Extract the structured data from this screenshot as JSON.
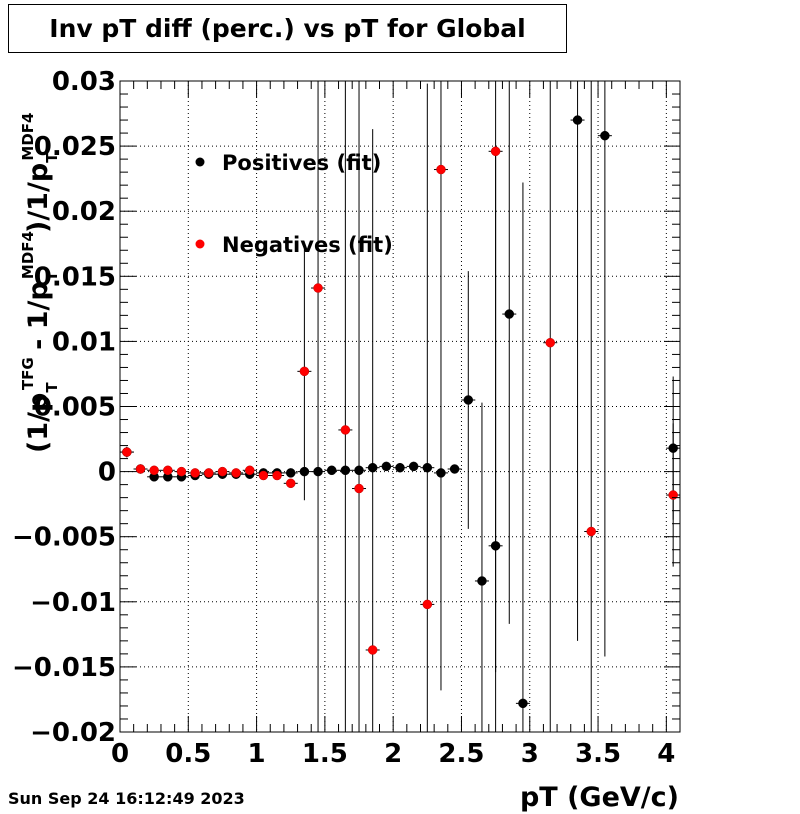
{
  "title": "Inv pT diff (perc.) vs pT for Global",
  "timestamp": "Sun Sep 24 16:12:49 2023",
  "chart_data": {
    "type": "scatter",
    "title": "Inv pT diff (perc.) vs pT for Global",
    "xlabel": "pT (GeV/c)",
    "ylabel_parts": [
      "(1/p",
      "T",
      "TFG",
      " - 1/p",
      "T",
      "MDF4",
      ")/1/p",
      "T",
      "MDF4"
    ],
    "xlim": [
      0,
      4.1
    ],
    "ylim": [
      -0.02,
      0.03
    ],
    "x_ticks": [
      0,
      0.5,
      1,
      1.5,
      2,
      2.5,
      3,
      3.5,
      4
    ],
    "x_tick_labels": [
      "0",
      "0.5",
      "1",
      "1.5",
      "2",
      "2.5",
      "3",
      "3.5",
      "4"
    ],
    "y_ticks": [
      -0.02,
      -0.015,
      -0.01,
      -0.005,
      0,
      0.005,
      0.01,
      0.015,
      0.02,
      0.025,
      0.03
    ],
    "y_tick_labels": [
      "−0.02",
      "−0.015",
      "−0.01",
      "−0.005",
      "0",
      "0.005",
      "0.01",
      "0.015",
      "0.02",
      "0.025",
      "0.03"
    ],
    "grid": true,
    "legend_position": "top-left",
    "series": [
      {
        "name": "Positives (fit)",
        "color": "#000000",
        "points": [
          {
            "x": 0.05,
            "y": 0.0015,
            "err": 0.0004
          },
          {
            "x": 0.15,
            "y": 0.0002,
            "err": 0.0002
          },
          {
            "x": 0.25,
            "y": -0.0004,
            "err": 0.0002
          },
          {
            "x": 0.35,
            "y": -0.0004,
            "err": 0.0002
          },
          {
            "x": 0.45,
            "y": -0.0004,
            "err": 0.0002
          },
          {
            "x": 0.55,
            "y": -0.0003,
            "err": 0.0002
          },
          {
            "x": 0.65,
            "y": -0.0002,
            "err": 0.0002
          },
          {
            "x": 0.75,
            "y": -0.0002,
            "err": 0.0002
          },
          {
            "x": 0.85,
            "y": -0.0002,
            "err": 0.0002
          },
          {
            "x": 0.95,
            "y": -0.0002,
            "err": 0.0002
          },
          {
            "x": 1.05,
            "y": -0.0001,
            "err": 0.0003
          },
          {
            "x": 1.15,
            "y": -0.0001,
            "err": 0.0003
          },
          {
            "x": 1.25,
            "y": -0.0001,
            "err": 0.0003
          },
          {
            "x": 1.35,
            "y": 0.0,
            "err": 0.0003
          },
          {
            "x": 1.45,
            "y": 0.0,
            "err": 0.0003
          },
          {
            "x": 1.55,
            "y": 0.0001,
            "err": 0.0003
          },
          {
            "x": 1.65,
            "y": 0.0001,
            "err": 0.0003
          },
          {
            "x": 1.75,
            "y": 0.0001,
            "err": 0.0003
          },
          {
            "x": 1.85,
            "y": 0.0003,
            "err": 0.0003
          },
          {
            "x": 1.95,
            "y": 0.0004,
            "err": 0.0003
          },
          {
            "x": 2.05,
            "y": 0.0003,
            "err": 0.0003
          },
          {
            "x": 2.15,
            "y": 0.0004,
            "err": 0.0003
          },
          {
            "x": 2.25,
            "y": 0.0003,
            "err": 0.0003
          },
          {
            "x": 2.35,
            "y": -0.0001,
            "err": 0.0003
          },
          {
            "x": 2.45,
            "y": 0.0002,
            "err": 0.0003
          },
          {
            "x": 2.55,
            "y": 0.0055,
            "err": 0.0099
          },
          {
            "x": 2.65,
            "y": -0.0084,
            "err": 0.0137
          },
          {
            "x": 2.75,
            "y": -0.0057,
            "err": 0.03
          },
          {
            "x": 2.85,
            "y": 0.0121,
            "err": 0.0238
          },
          {
            "x": 2.95,
            "y": -0.0178,
            "err": 0.04
          },
          {
            "x": 3.35,
            "y": 0.027,
            "err": 0.04
          },
          {
            "x": 3.55,
            "y": 0.0258,
            "err": 0.04
          },
          {
            "x": 4.05,
            "y": 0.0018,
            "err": 0.0055
          }
        ]
      },
      {
        "name": "Negatives (fit)",
        "color": "#ff0000",
        "points": [
          {
            "x": 0.05,
            "y": 0.0015,
            "err": 0.0004
          },
          {
            "x": 0.15,
            "y": 0.0002,
            "err": 0.0002
          },
          {
            "x": 0.25,
            "y": 0.0001,
            "err": 0.0002
          },
          {
            "x": 0.35,
            "y": 0.0001,
            "err": 0.0002
          },
          {
            "x": 0.45,
            "y": 0.0,
            "err": 0.0002
          },
          {
            "x": 0.55,
            "y": -0.0001,
            "err": 0.0002
          },
          {
            "x": 0.65,
            "y": -0.0001,
            "err": 0.0002
          },
          {
            "x": 0.75,
            "y": 0.0,
            "err": 0.0002
          },
          {
            "x": 0.85,
            "y": -0.0001,
            "err": 0.0002
          },
          {
            "x": 0.95,
            "y": 0.0001,
            "err": 0.0002
          },
          {
            "x": 1.05,
            "y": -0.0003,
            "err": 0.0003
          },
          {
            "x": 1.15,
            "y": -0.0003,
            "err": 0.0003
          },
          {
            "x": 1.25,
            "y": -0.0009,
            "err": 0.0003
          },
          {
            "x": 1.35,
            "y": 0.0077,
            "err": 0.0099
          },
          {
            "x": 1.45,
            "y": 0.0141,
            "err": 0.04
          },
          {
            "x": 1.65,
            "y": 0.0032,
            "err": 0.04
          },
          {
            "x": 1.75,
            "y": -0.0013,
            "err": 0.04
          },
          {
            "x": 1.85,
            "y": -0.0137,
            "err": 0.04
          },
          {
            "x": 2.25,
            "y": -0.0102,
            "err": 0.04
          },
          {
            "x": 2.35,
            "y": 0.0232,
            "err": 0.04
          },
          {
            "x": 2.75,
            "y": 0.0246,
            "err": 0.04
          },
          {
            "x": 3.15,
            "y": 0.0099,
            "err": 0.04
          },
          {
            "x": 3.45,
            "y": -0.0046,
            "err": 0.04
          },
          {
            "x": 4.05,
            "y": -0.0018,
            "err": 0.0055
          }
        ]
      }
    ]
  }
}
